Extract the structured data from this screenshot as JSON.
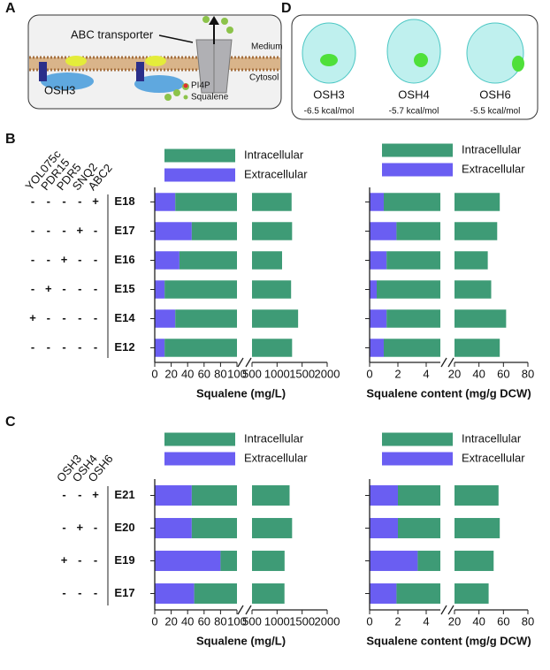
{
  "panel_a": {
    "letter": "A",
    "transporter": "ABC transporter",
    "medium": "Medium",
    "cytosol": "Cytosol",
    "protein": "OSH3",
    "legend_pi4p": "PI4P",
    "legend_squalene": "Squalene"
  },
  "panel_d": {
    "letter": "D",
    "structures": [
      {
        "name": "OSH3",
        "energy": "-6.5 kcal/mol"
      },
      {
        "name": "OSH4",
        "energy": "-5.7 kcal/mol"
      },
      {
        "name": "OSH6",
        "energy": "-5.5 kcal/mol"
      }
    ]
  },
  "chart_data": [
    {
      "type": "bar",
      "panel": "B",
      "x_label": "Squalene (mg/L)",
      "genes": [
        "YOL075c",
        "PDR15",
        "PDR5",
        "SNQ2",
        "ABC2"
      ],
      "genotypes": [
        [
          "-",
          "-",
          "-",
          "-",
          "+"
        ],
        [
          "-",
          "-",
          "-",
          "+",
          "-"
        ],
        [
          "-",
          "-",
          "+",
          "-",
          "-"
        ],
        [
          "-",
          "+",
          "-",
          "-",
          "-"
        ],
        [
          "+",
          "-",
          "-",
          "-",
          "-"
        ],
        [
          "-",
          "-",
          "-",
          "-",
          "-"
        ]
      ],
      "categories": [
        "E18",
        "E17",
        "E16",
        "E15",
        "E14",
        "E12"
      ],
      "series": [
        {
          "name": "Extracellular",
          "color": "#6a5ef2",
          "values": [
            25,
            45,
            30,
            12,
            25,
            12
          ]
        },
        {
          "name": "Intracellular",
          "color": "#3e9b76",
          "values": [
            1265,
            1255,
            1070,
            1268,
            1395,
            1288
          ]
        }
      ],
      "x_segments": [
        {
          "xlim": [
            0,
            100
          ],
          "xticks": [
            0,
            20,
            40,
            60,
            80,
            100
          ]
        },
        {
          "xlim": [
            500,
            2000
          ],
          "xticks": [
            500,
            1000,
            1500,
            2000
          ]
        }
      ]
    },
    {
      "type": "bar",
      "x_label": "Squalene content (mg/g DCW)",
      "categories": [
        "E18",
        "E17",
        "E16",
        "E15",
        "E14",
        "E12"
      ],
      "series": [
        {
          "name": "Extracellular",
          "color": "#6a5ef2",
          "values": [
            1.0,
            1.9,
            1.2,
            0.5,
            1.2,
            1.0
          ]
        },
        {
          "name": "Intracellular",
          "color": "#3e9b76",
          "values": [
            56,
            53,
            46,
            49.5,
            61,
            56
          ]
        }
      ],
      "x_segments": [
        {
          "xlim": [
            0,
            5
          ],
          "xticks": [
            0,
            2,
            4
          ]
        },
        {
          "xlim": [
            20,
            80
          ],
          "xticks": [
            20,
            40,
            60,
            80
          ]
        }
      ]
    },
    {
      "type": "bar",
      "panel": "C",
      "x_label": "Squalene (mg/L)",
      "genes": [
        "OSH3",
        "OSH4",
        "OSH6"
      ],
      "genotypes": [
        [
          "-",
          "-",
          "+"
        ],
        [
          "-",
          "+",
          "-"
        ],
        [
          "+",
          "-",
          "-"
        ],
        [
          "-",
          "-",
          "-"
        ]
      ],
      "categories": [
        "E21",
        "E20",
        "E19",
        "E17"
      ],
      "series": [
        {
          "name": "Extracellular",
          "color": "#6a5ef2",
          "values": [
            45,
            45,
            80,
            48
          ]
        },
        {
          "name": "Intracellular",
          "color": "#3e9b76",
          "values": [
            1205,
            1255,
            1070,
            1100
          ]
        }
      ],
      "x_segments": [
        {
          "xlim": [
            0,
            100
          ],
          "xticks": [
            0,
            20,
            40,
            60,
            80,
            100
          ]
        },
        {
          "xlim": [
            500,
            2000
          ],
          "xticks": [
            500,
            1000,
            1500,
            2000
          ]
        }
      ]
    },
    {
      "type": "bar",
      "x_label": "Squalene content (mg/g DCW)",
      "categories": [
        "E21",
        "E20",
        "E19",
        "E17"
      ],
      "series": [
        {
          "name": "Extracellular",
          "color": "#6a5ef2",
          "values": [
            2.0,
            2.0,
            3.4,
            1.9
          ]
        },
        {
          "name": "Intracellular",
          "color": "#3e9b76",
          "values": [
            54,
            55,
            48.6,
            46
          ]
        }
      ],
      "x_segments": [
        {
          "xlim": [
            0,
            5
          ],
          "xticks": [
            0,
            2,
            4
          ]
        },
        {
          "xlim": [
            20,
            80
          ],
          "xticks": [
            20,
            40,
            60,
            80
          ]
        }
      ]
    }
  ]
}
